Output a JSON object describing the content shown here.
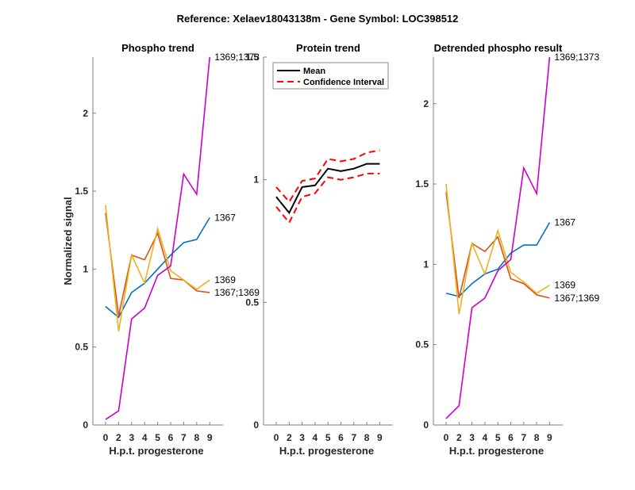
{
  "figure": {
    "suptitle": "Reference:  Xelaev18043138m - Gene Symbol:  LOC398512"
  },
  "chart_data": [
    {
      "type": "line",
      "title": "Phospho trend",
      "xlabel": "H.p.t. progesterone",
      "ylabel": "Normalized signal",
      "categories": [
        "0",
        "2",
        "3",
        "4",
        "5",
        "6",
        "7",
        "8",
        "9"
      ],
      "ylim": [
        0,
        2.36
      ],
      "yticks": [
        "0",
        "0.5",
        "1",
        "1.5",
        "2"
      ],
      "ytick_values": [
        0,
        0.5,
        1,
        1.5,
        2
      ],
      "grid": false,
      "series": [
        {
          "name": "1367",
          "color": "#0072BD",
          "values": [
            0.76,
            0.69,
            0.85,
            0.91,
            1.0,
            1.09,
            1.17,
            1.19,
            1.33
          ]
        },
        {
          "name": "1367;1369",
          "color": "#D95319",
          "values": [
            1.36,
            0.7,
            1.09,
            1.06,
            1.23,
            0.94,
            0.93,
            0.86,
            0.85
          ]
        },
        {
          "name": "1369",
          "color": "#EDB120",
          "values": [
            1.41,
            0.6,
            1.09,
            0.91,
            1.26,
            0.99,
            0.93,
            0.87,
            0.93
          ]
        },
        {
          "name": "1369;1373",
          "color": "#CC00CC",
          "values": [
            0.035,
            0.09,
            0.68,
            0.75,
            0.96,
            1.02,
            1.61,
            1.48,
            2.36
          ]
        }
      ]
    },
    {
      "type": "line",
      "title": "Protein trend",
      "xlabel": "H.p.t. progesterone",
      "ylabel": "",
      "categories": [
        "0",
        "2",
        "3",
        "4",
        "5",
        "6",
        "7",
        "8",
        "9"
      ],
      "ylim": [
        0,
        1.5
      ],
      "yticks": [
        "0",
        "0.5",
        "1",
        "1.5"
      ],
      "ytick_values": [
        0,
        0.5,
        1,
        1.5
      ],
      "grid": false,
      "legend": {
        "placement": "top-left",
        "entries": [
          "Mean",
          "Confidence Interval"
        ]
      },
      "series": [
        {
          "name": "Mean",
          "color": "#000000",
          "style": "solid",
          "values": [
            0.93,
            0.865,
            0.97,
            0.977,
            1.045,
            1.035,
            1.045,
            1.065,
            1.065
          ]
        },
        {
          "name": "Confidence Interval",
          "color": "#FF0000",
          "style": "dashed",
          "values": [
            0.97,
            0.91,
            0.995,
            1.005,
            1.085,
            1.075,
            1.085,
            1.11,
            1.12
          ]
        },
        {
          "name": "Confidence Interval (lower)",
          "color": "#FF0000",
          "style": "dashed",
          "values": [
            0.89,
            0.825,
            0.93,
            0.945,
            1.01,
            1.0,
            1.01,
            1.025,
            1.025
          ]
        }
      ]
    },
    {
      "type": "line",
      "title": "Detrended phospho result",
      "xlabel": "H.p.t. progesterone",
      "ylabel": "",
      "categories": [
        "0",
        "2",
        "3",
        "4",
        "5",
        "6",
        "7",
        "8",
        "9"
      ],
      "ylim": [
        0,
        2.29
      ],
      "yticks": [
        "0",
        "0.5",
        "1",
        "1.5",
        "2"
      ],
      "ytick_values": [
        0,
        0.5,
        1,
        1.5,
        2
      ],
      "grid": false,
      "series": [
        {
          "name": "1367",
          "color": "#0072BD",
          "values": [
            0.82,
            0.8,
            0.88,
            0.94,
            0.97,
            1.07,
            1.12,
            1.12,
            1.26
          ]
        },
        {
          "name": "1367;1369",
          "color": "#D95319",
          "values": [
            1.45,
            0.79,
            1.13,
            1.08,
            1.17,
            0.91,
            0.88,
            0.81,
            0.79
          ]
        },
        {
          "name": "1369",
          "color": "#EDB120",
          "values": [
            1.5,
            0.69,
            1.13,
            0.94,
            1.21,
            0.95,
            0.89,
            0.82,
            0.87
          ]
        },
        {
          "name": "1369;1373",
          "color": "#CC00CC",
          "values": [
            0.04,
            0.12,
            0.73,
            0.79,
            0.96,
            1.03,
            1.6,
            1.44,
            2.29
          ]
        }
      ]
    }
  ]
}
